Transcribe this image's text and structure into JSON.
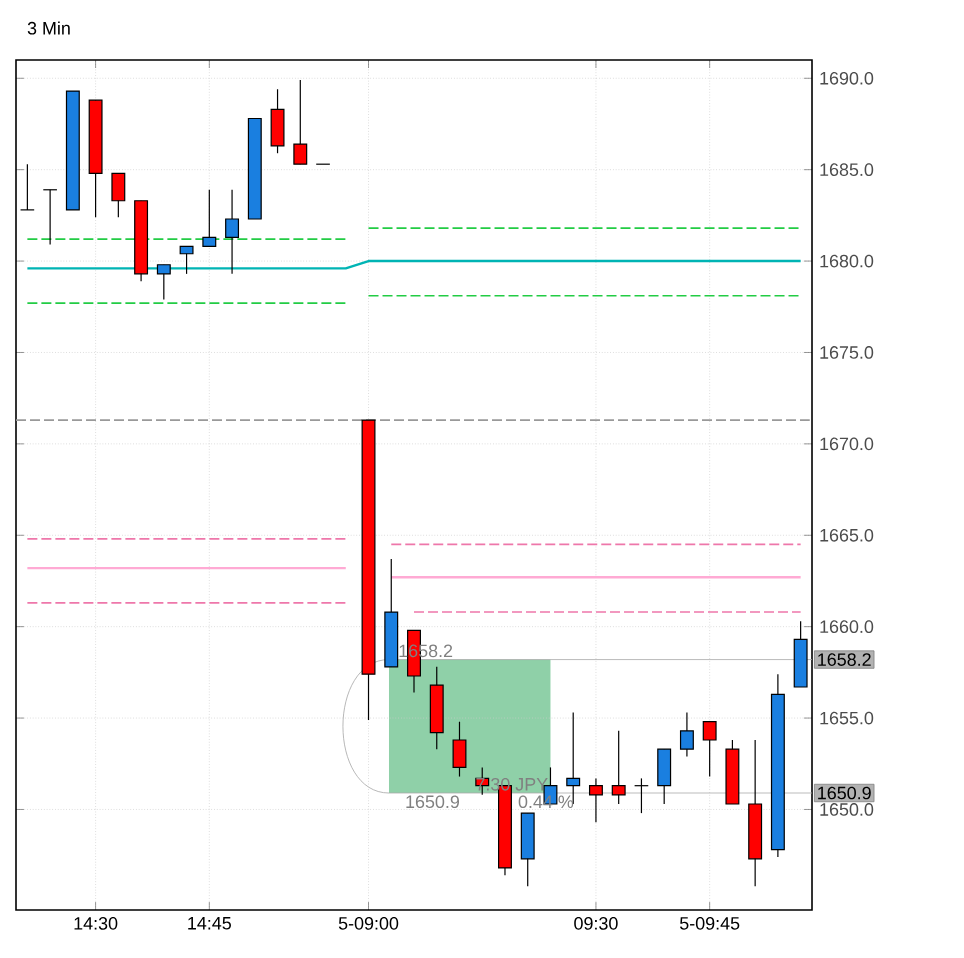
{
  "chart_data": {
    "type": "candlestick",
    "title": "3 Min",
    "categories": [
      null,
      null,
      null,
      "14:30",
      null,
      null,
      null,
      null,
      "14:45",
      null,
      null,
      null,
      null,
      null,
      null,
      "5-09:00",
      null,
      null,
      null,
      null,
      null,
      null,
      null,
      null,
      null,
      "09:30",
      null,
      null,
      null,
      null,
      "5-09:45",
      null,
      null,
      null,
      null
    ],
    "ohlc": [
      [
        1682.8,
        1685.3,
        1682.8,
        1682.8
      ],
      [
        1683.9,
        1683.9,
        1680.9,
        1683.9
      ],
      [
        1682.8,
        1689.3,
        1682.8,
        1689.3
      ],
      [
        1688.8,
        1688.8,
        1682.4,
        1684.8
      ],
      [
        1684.8,
        1684.8,
        1682.4,
        1683.3
      ],
      [
        1683.3,
        1683.3,
        1678.9,
        1679.3
      ],
      [
        1679.3,
        1679.8,
        1677.9,
        1679.8
      ],
      [
        1680.4,
        1680.8,
        1679.3,
        1680.8
      ],
      [
        1680.8,
        1683.9,
        1680.8,
        1681.3
      ],
      [
        1681.3,
        1683.9,
        1679.3,
        1682.3
      ],
      [
        1682.3,
        1687.8,
        1682.3,
        1687.8
      ],
      [
        1688.3,
        1689.4,
        1685.9,
        1686.3
      ],
      [
        1686.4,
        1689.9,
        1685.3,
        1685.3
      ],
      [
        1685.3,
        1685.3,
        1685.3,
        1685.3
      ],
      null,
      [
        1671.3,
        1671.3,
        1654.9,
        1657.4
      ],
      [
        1657.8,
        1663.7,
        1657.8,
        1660.8
      ],
      [
        1659.8,
        1659.8,
        1656.4,
        1657.3
      ],
      [
        1656.8,
        1657.8,
        1653.3,
        1654.2
      ],
      [
        1653.8,
        1654.8,
        1651.8,
        1652.3
      ],
      [
        1651.7,
        1652.3,
        1650.8,
        1651.3
      ],
      [
        1651.3,
        1651.3,
        1646.4,
        1646.8
      ],
      [
        1647.3,
        1649.8,
        1645.8,
        1649.8
      ],
      [
        1650.3,
        1652.3,
        1650.3,
        1651.3
      ],
      [
        1651.3,
        1655.3,
        1650.3,
        1651.7
      ],
      [
        1651.3,
        1651.7,
        1649.3,
        1650.8
      ],
      [
        1651.3,
        1654.3,
        1650.3,
        1650.8
      ],
      [
        1651.3,
        1651.7,
        1649.8,
        1651.3
      ],
      [
        1651.3,
        1653.3,
        1650.3,
        1653.3
      ],
      [
        1653.3,
        1655.3,
        1652.9,
        1654.3
      ],
      [
        1654.8,
        1654.8,
        1651.8,
        1653.8
      ],
      [
        1653.3,
        1653.8,
        1650.3,
        1650.3
      ],
      [
        1650.3,
        1653.8,
        1645.8,
        1647.3
      ],
      [
        1647.8,
        1657.4,
        1647.4,
        1656.3
      ],
      [
        1656.7,
        1660.3,
        1656.7,
        1659.3
      ]
    ],
    "colors": [
      "#000000",
      "#000000",
      "#1a7fe0",
      "#ff0000",
      "#ff0000",
      "#ff0000",
      "#1a7fe0",
      "#1a7fe0",
      "#1a7fe0",
      "#1a7fe0",
      "#1a7fe0",
      "#ff0000",
      "#ff0000",
      "#000000",
      null,
      "#ff0000",
      "#1a7fe0",
      "#ff0000",
      "#ff0000",
      "#ff0000",
      "#ff0000",
      "#ff0000",
      "#1a7fe0",
      "#1a7fe0",
      "#1a7fe0",
      "#ff0000",
      "#ff0000",
      "#000000",
      "#1a7fe0",
      "#1a7fe0",
      "#ff0000",
      "#ff0000",
      "#ff0000",
      "#1a7fe0",
      "#1a7fe0"
    ],
    "series": [
      {
        "type": "line",
        "color": "#00b4b4",
        "line_style": "solid",
        "values": [
          1679.6,
          1679.6,
          1679.6,
          1679.6,
          1679.6,
          1679.6,
          1679.6,
          1679.6,
          1679.6,
          1679.6,
          1679.6,
          1679.6,
          1679.6,
          1679.6,
          1679.6,
          1680,
          1680,
          1680,
          1680,
          1680,
          1680,
          1680,
          1680,
          1680,
          1680,
          1680,
          1680,
          1680,
          1680,
          1680,
          1680,
          1680,
          1680,
          1680,
          1680
        ]
      },
      {
        "type": "line",
        "color": "#ffaad4",
        "line_style": "solid",
        "values": [
          1663.2,
          1663.2,
          1663.2,
          1663.2,
          1663.2,
          1663.2,
          1663.2,
          1663.2,
          1663.2,
          1663.2,
          1663.2,
          1663.2,
          1663.2,
          1663.2,
          1663.2,
          null,
          1662.7,
          1662.7,
          1662.7,
          1662.7,
          1662.7,
          1662.7,
          1662.7,
          1662.7,
          1662.7,
          1662.7,
          1662.7,
          1662.7,
          1662.7,
          1662.7,
          1662.7,
          1662.7,
          1662.7,
          1662.7,
          1662.7
        ]
      },
      {
        "type": "line",
        "color": "#22cc44",
        "line_style": "dashed",
        "values": [
          1681.2,
          1681.2,
          1681.2,
          1681.2,
          1681.2,
          1681.2,
          1681.2,
          1681.2,
          1681.2,
          1681.2,
          1681.2,
          1681.2,
          1681.2,
          1681.2,
          1681.2,
          null,
          null,
          null,
          null,
          null,
          null,
          null,
          null,
          null,
          null,
          null,
          null,
          null,
          null,
          null,
          null,
          null,
          null,
          null,
          null
        ]
      },
      {
        "type": "line",
        "color": "#22cc44",
        "line_style": "dashed",
        "values": [
          1677.7,
          1677.7,
          1677.7,
          1677.7,
          1677.7,
          1677.7,
          1677.7,
          1677.7,
          1677.7,
          1677.7,
          1677.7,
          1677.7,
          1677.7,
          1677.7,
          1677.7,
          null,
          null,
          null,
          null,
          null,
          null,
          null,
          null,
          null,
          null,
          null,
          null,
          null,
          null,
          null,
          null,
          null,
          null,
          null,
          null
        ]
      },
      {
        "type": "line",
        "color": "#22cc44",
        "line_style": "dashed",
        "values": [
          null,
          null,
          null,
          null,
          null,
          null,
          null,
          null,
          null,
          null,
          null,
          null,
          null,
          null,
          null,
          1681.8,
          1681.8,
          1681.8,
          1681.8,
          1681.8,
          1681.8,
          1681.8,
          1681.8,
          1681.8,
          1681.8,
          1681.8,
          1681.8,
          1681.8,
          1681.8,
          1681.8,
          1681.8,
          1681.8,
          1681.8,
          1681.8,
          1681.8
        ]
      },
      {
        "type": "line",
        "color": "#22cc44",
        "line_style": "dashed",
        "values": [
          null,
          null,
          null,
          null,
          null,
          null,
          null,
          null,
          null,
          null,
          null,
          null,
          null,
          null,
          null,
          1678.1,
          1678.1,
          1678.1,
          1678.1,
          1678.1,
          1678.1,
          1678.1,
          1678.1,
          1678.1,
          1678.1,
          1678.1,
          1678.1,
          1678.1,
          1678.1,
          1678.1,
          1678.1,
          1678.1,
          1678.1,
          1678.1,
          1678.1
        ]
      },
      {
        "type": "line",
        "color": "#ee77aa",
        "line_style": "dashed",
        "values": [
          1664.8,
          1664.8,
          1664.8,
          1664.8,
          1664.8,
          1664.8,
          1664.8,
          1664.8,
          1664.8,
          1664.8,
          1664.8,
          1664.8,
          1664.8,
          1664.8,
          1664.8,
          null,
          null,
          null,
          null,
          null,
          null,
          null,
          null,
          null,
          null,
          null,
          null,
          null,
          null,
          null,
          null,
          null,
          null,
          null,
          null
        ]
      },
      {
        "type": "line",
        "color": "#ee77aa",
        "line_style": "dashed",
        "values": [
          1661.3,
          1661.3,
          1661.3,
          1661.3,
          1661.3,
          1661.3,
          1661.3,
          1661.3,
          1661.3,
          1661.3,
          1661.3,
          1661.3,
          1661.3,
          1661.3,
          1661.3,
          null,
          null,
          null,
          null,
          null,
          null,
          null,
          null,
          null,
          null,
          null,
          null,
          null,
          null,
          null,
          null,
          null,
          null,
          null,
          null
        ]
      },
      {
        "type": "line",
        "color": "#ee77aa",
        "line_style": "dashed",
        "values": [
          null,
          null,
          null,
          null,
          null,
          null,
          null,
          null,
          null,
          null,
          null,
          null,
          null,
          null,
          null,
          null,
          1664.5,
          1664.5,
          1664.5,
          1664.5,
          1664.5,
          1664.5,
          1664.5,
          1664.5,
          1664.5,
          1664.5,
          1664.5,
          1664.5,
          1664.5,
          1664.5,
          1664.5,
          1664.5,
          1664.5,
          1664.5,
          1664.5
        ]
      },
      {
        "type": "line",
        "color": "#ee77aa",
        "line_style": "dashed",
        "values": [
          null,
          null,
          null,
          null,
          null,
          null,
          null,
          null,
          null,
          null,
          null,
          null,
          null,
          null,
          null,
          null,
          null,
          1660.8,
          1660.8,
          1660.8,
          1660.8,
          1660.8,
          1660.8,
          1660.8,
          1660.8,
          1660.8,
          1660.8,
          1660.8,
          1660.8,
          1660.8,
          1660.8,
          1660.8,
          1660.8,
          1660.8,
          1660.8
        ]
      }
    ],
    "ref_lines": [
      {
        "axis": "y",
        "value": 1671.3,
        "color": "#999999",
        "line_style": "dashed"
      },
      {
        "axis": "y",
        "value": 1658.2,
        "label": "1658.2",
        "color": "#aaaaaa",
        "line_style": "solid"
      },
      {
        "axis": "y",
        "value": 1650.9,
        "label": "1650.9",
        "color": "#aaaaaa",
        "line_style": "solid"
      }
    ],
    "annotations": [
      {
        "text": "1658.2",
        "y": 1658.2
      },
      {
        "text": "1650.9",
        "y": 1650.9
      },
      "7.30 JPY",
      "0.44 %"
    ],
    "ylim": [
      1644.5,
      1691
    ],
    "yticks": [
      {
        "value": 1650,
        "label": "1650.0"
      },
      {
        "value": 1655,
        "label": "1655.0"
      },
      {
        "value": 1660,
        "label": "1660.0"
      },
      {
        "value": 1665,
        "label": "1665.0"
      },
      {
        "value": 1670,
        "label": "1670.0"
      },
      {
        "value": 1675,
        "label": "1675.0"
      },
      {
        "value": 1680,
        "label": "1680.0"
      },
      {
        "value": 1685,
        "label": "1685.0"
      },
      {
        "value": 1690,
        "label": "1690.0"
      }
    ],
    "grid": true
  }
}
